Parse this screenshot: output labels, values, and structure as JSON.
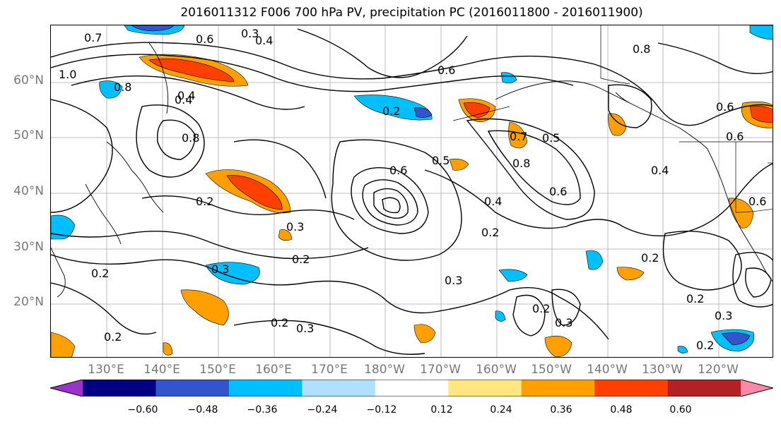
{
  "title": "2016011312 F006 700 hPa PV, precipitation PC (2016011800 - 2016011900)",
  "lat_labels": [
    "60°N",
    "50°N",
    "40°N",
    "30°N",
    "20°N"
  ],
  "lon_labels": [
    "130°E",
    "140°E",
    "150°E",
    "160°E",
    "170°E",
    "180°W",
    "170°W",
    "160°W",
    "150°W",
    "140°W",
    "130°W",
    "120°W"
  ],
  "colorbar": {
    "tick_labels": [
      "−0.60",
      "−0.48",
      "−0.36",
      "−0.24",
      "−0.12",
      "0.12",
      "0.24",
      "0.36",
      "0.48",
      "0.60"
    ],
    "colors": [
      "#9933cc",
      "#000080",
      "#3355cc",
      "#00bfff",
      "#b0e0ff",
      "#ffffff",
      "#ffe680",
      "#ffa000",
      "#ff4000",
      "#b22222",
      "#ff88aa"
    ]
  },
  "contour_labels": [
    {
      "text": "0.7"
    },
    {
      "text": "0.6"
    },
    {
      "text": "0.3"
    },
    {
      "text": "0.4"
    },
    {
      "text": "1.0"
    },
    {
      "text": "0.8"
    },
    {
      "text": "0.4"
    },
    {
      "text": "0.2"
    },
    {
      "text": "0.5"
    },
    {
      "text": "0.6"
    },
    {
      "text": "0.8"
    },
    {
      "text": "0.4"
    },
    {
      "text": "0.6"
    },
    {
      "text": "0.7"
    },
    {
      "text": "0.5"
    },
    {
      "text": "0.8"
    },
    {
      "text": "0.6"
    },
    {
      "text": "0.4"
    },
    {
      "text": "0.2"
    },
    {
      "text": "0.3"
    },
    {
      "text": "0.2"
    },
    {
      "text": "0.3"
    },
    {
      "text": "0.2"
    },
    {
      "text": "0.3"
    },
    {
      "text": "0.2"
    },
    {
      "text": "0.3"
    },
    {
      "text": "0.2"
    },
    {
      "text": "0.2"
    },
    {
      "text": "0.3"
    },
    {
      "text": "0.6"
    },
    {
      "text": "0.8"
    },
    {
      "text": "0.6"
    },
    {
      "text": "0.2"
    },
    {
      "text": "0.2"
    },
    {
      "text": "0.3"
    },
    {
      "text": "0.2"
    },
    {
      "text": "0.6"
    },
    {
      "text": "0.4"
    },
    {
      "text": "0.2"
    }
  ]
}
